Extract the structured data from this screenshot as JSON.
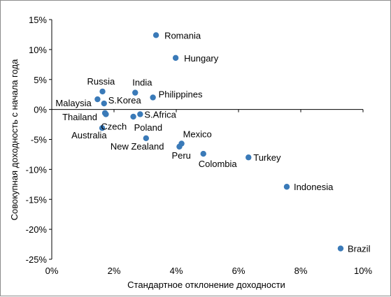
{
  "chart_data": {
    "type": "scatter",
    "title": "",
    "xlabel": "Стандартное отклонение доходности",
    "ylabel": "Совокупная доходность с начала года",
    "xlim": [
      0,
      10
    ],
    "ylim": [
      -25,
      15
    ],
    "x_ticks": [
      0,
      2,
      4,
      6,
      8,
      10
    ],
    "y_ticks": [
      15,
      10,
      5,
      0,
      -5,
      -10,
      -15,
      -20,
      -25
    ],
    "x_tick_labels": [
      "0%",
      "2%",
      "4%",
      "6%",
      "8%",
      "10%"
    ],
    "y_tick_labels": [
      "15%",
      "10%",
      "5%",
      "0%",
      "-5%",
      "-10%",
      "-15%",
      "-20%",
      "-25%"
    ],
    "units": "%",
    "grid": false,
    "marker_color": "#3a7ab8",
    "points": [
      {
        "label": "Romania",
        "x": 3.35,
        "y": 12.4
      },
      {
        "label": "Hungary",
        "x": 3.98,
        "y": 8.6
      },
      {
        "label": "India",
        "x": 2.68,
        "y": 2.8
      },
      {
        "label": "Philippines",
        "x": 3.25,
        "y": 2.0
      },
      {
        "label": "Russia",
        "x": 1.63,
        "y": 3.0
      },
      {
        "label": "Malaysia",
        "x": 1.47,
        "y": 1.7
      },
      {
        "label": "S.Korea",
        "x": 1.68,
        "y": 1.0
      },
      {
        "label": "Thailand",
        "x": 1.71,
        "y": -0.6
      },
      {
        "label": "Czech",
        "x": 1.74,
        "y": -0.8
      },
      {
        "label": "S.Africa",
        "x": 2.84,
        "y": -0.8
      },
      {
        "label": "Poland",
        "x": 2.62,
        "y": -1.2
      },
      {
        "label": "Australia",
        "x": 1.62,
        "y": -3.1
      },
      {
        "label": "New Zealand",
        "x": 3.03,
        "y": -4.8
      },
      {
        "label": "Mexico",
        "x": 4.17,
        "y": -5.7
      },
      {
        "label": "Peru",
        "x": 4.1,
        "y": -6.2
      },
      {
        "label": "Colombia",
        "x": 4.87,
        "y": -7.4
      },
      {
        "label": "Turkey",
        "x": 6.32,
        "y": -8.0
      },
      {
        "label": "Indonesia",
        "x": 7.55,
        "y": -12.9
      },
      {
        "label": "Brazil",
        "x": 9.28,
        "y": -23.2
      }
    ]
  }
}
